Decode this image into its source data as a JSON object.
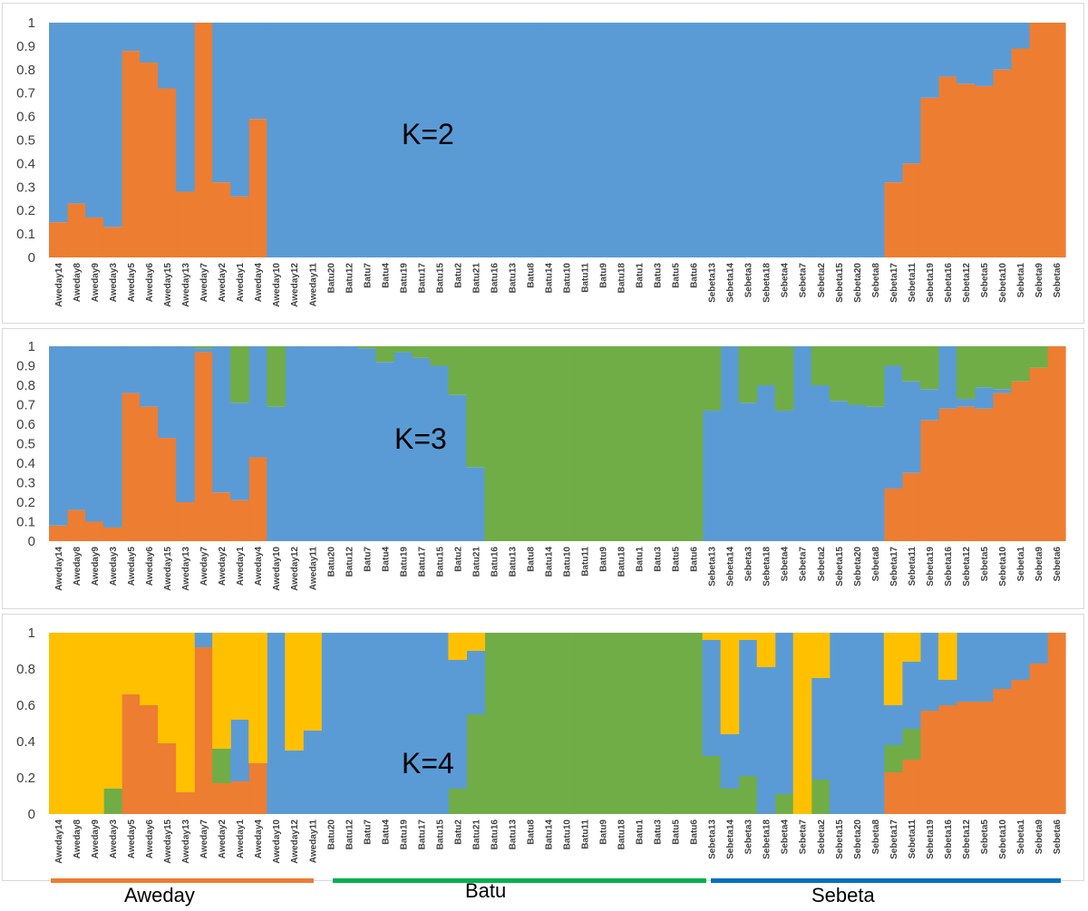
{
  "colors": {
    "blue": "#5b9bd5",
    "orange": "#ed7d31",
    "green": "#70ad47",
    "yellow": "#ffc000",
    "aweday_bar": "#ed7d31",
    "batu_bar": "#00b050",
    "sebeta_bar": "#0070c0"
  },
  "populations": [
    {
      "name": "Aweday",
      "color": "#ed7d31"
    },
    {
      "name": "Batu",
      "color": "#00b050"
    },
    {
      "name": "Sebeta",
      "color": "#0070c0"
    }
  ],
  "chart_data": [
    {
      "type": "bar",
      "stacked": true,
      "title": "K=2",
      "ylim": [
        0,
        1
      ],
      "yticks": [
        "0",
        "0.1",
        "0.2",
        "0.3",
        "0.4",
        "0.5",
        "0.6",
        "0.7",
        "0.8",
        "0.9",
        "1"
      ],
      "categories": [
        "Aweday14",
        "Aweday8",
        "Aweday9",
        "Aweday3",
        "Aweday5",
        "Aweday6",
        "Aweday15",
        "Aweday13",
        "Aweday7",
        "Aweday2",
        "Aweday1",
        "Aweday4",
        "Aweday10",
        "Aweday12",
        "Aweday11",
        "Batu20",
        "Batu12",
        "Batu7",
        "Batu4",
        "Batu19",
        "Batu17",
        "Batu15",
        "Batu2",
        "Batu21",
        "Batu16",
        "Batu13",
        "Batu8",
        "Batu14",
        "Batu10",
        "Batu11",
        "Batu9",
        "Batu18",
        "Batu1",
        "Batu3",
        "Batu5",
        "Batu6",
        "Sebeta13",
        "Sebeta14",
        "Sebeta3",
        "Sebeta18",
        "Sebeta4",
        "Sebeta7",
        "Sebeta2",
        "Sebeta15",
        "Sebeta20",
        "Sebeta8",
        "Sebeta17",
        "Sebeta11",
        "Sebeta19",
        "Sebeta16",
        "Sebeta12",
        "Sebeta5",
        "Sebeta10",
        "Sebeta1",
        "Sebeta9",
        "Sebeta6"
      ],
      "series": [
        {
          "color": "#ed7d31",
          "values": [
            0.15,
            0.23,
            0.17,
            0.13,
            0.88,
            0.83,
            0.72,
            0.28,
            1.0,
            0.32,
            0.26,
            0.59,
            0,
            0,
            0,
            0,
            0,
            0,
            0,
            0,
            0,
            0,
            0,
            0,
            0,
            0,
            0,
            0,
            0,
            0,
            0,
            0,
            0,
            0,
            0,
            0,
            0,
            0,
            0,
            0,
            0,
            0,
            0,
            0,
            0,
            0,
            0.32,
            0.4,
            0.68,
            0.77,
            0.74,
            0.73,
            0.8,
            0.89,
            1.0,
            1.0
          ]
        },
        {
          "color": "#5b9bd5",
          "values": [
            0.85,
            0.77,
            0.83,
            0.87,
            0.12,
            0.17,
            0.28,
            0.72,
            0,
            0.68,
            0.74,
            0.41,
            1,
            1,
            1,
            1,
            1,
            1,
            1,
            1,
            1,
            1,
            1,
            1,
            1,
            1,
            1,
            1,
            1,
            1,
            1,
            1,
            1,
            1,
            1,
            1,
            1,
            1,
            1,
            1,
            1,
            1,
            1,
            1,
            1,
            1,
            0.68,
            0.6,
            0.32,
            0.23,
            0.26,
            0.27,
            0.2,
            0.11,
            0,
            0
          ]
        }
      ]
    },
    {
      "type": "bar",
      "stacked": true,
      "title": "K=3",
      "ylim": [
        0,
        1
      ],
      "yticks": [
        "0",
        "0.1",
        "0.2",
        "0.3",
        "0.4",
        "0.5",
        "0.6",
        "0.7",
        "0.8",
        "0.9",
        "1"
      ],
      "categories": [
        "Aweday14",
        "Aweday8",
        "Aweday9",
        "Aweday3",
        "Aweday5",
        "Aweday6",
        "Aweday15",
        "Aweday13",
        "Aweday7",
        "Aweday2",
        "Aweday1",
        "Aweday4",
        "Aweday10",
        "Aweday12",
        "Aweday11",
        "Batu20",
        "Batu12",
        "Batu7",
        "Batu4",
        "Batu19",
        "Batu17",
        "Batu15",
        "Batu2",
        "Batu21",
        "Batu16",
        "Batu13",
        "Batu8",
        "Batu14",
        "Batu10",
        "Batu11",
        "Batu9",
        "Batu18",
        "Batu1",
        "Batu3",
        "Batu5",
        "Batu6",
        "Sebeta13",
        "Sebeta14",
        "Sebeta3",
        "Sebeta18",
        "Sebeta4",
        "Sebeta7",
        "Sebeta2",
        "Sebeta15",
        "Sebeta20",
        "Sebeta8",
        "Sebeta17",
        "Sebeta11",
        "Sebeta19",
        "Sebeta16",
        "Sebeta12",
        "Sebeta5",
        "Sebeta10",
        "Sebeta1",
        "Sebeta9",
        "Sebeta6"
      ],
      "series": [
        {
          "color": "#ed7d31",
          "values": [
            0.08,
            0.16,
            0.1,
            0.07,
            0.76,
            0.69,
            0.53,
            0.2,
            0.97,
            0.25,
            0.21,
            0.43,
            0,
            0,
            0,
            0,
            0,
            0,
            0,
            0,
            0,
            0,
            0,
            0,
            0,
            0,
            0,
            0,
            0,
            0,
            0,
            0,
            0,
            0,
            0,
            0,
            0,
            0,
            0,
            0,
            0,
            0,
            0,
            0,
            0,
            0,
            0.27,
            0.35,
            0.62,
            0.68,
            0.69,
            0.68,
            0.76,
            0.82,
            0.89,
            1.0
          ]
        },
        {
          "color": "#5b9bd5",
          "values": [
            0.92,
            0.84,
            0.9,
            0.93,
            0.24,
            0.31,
            0.47,
            0.8,
            0.02,
            0.75,
            0.5,
            0.57,
            0.69,
            1,
            1,
            1,
            1,
            0.99,
            0.92,
            0.97,
            0.94,
            0.9,
            0.75,
            0.38,
            0,
            0,
            0,
            0,
            0,
            0,
            0,
            0,
            0,
            0,
            0,
            0,
            0.67,
            1,
            0.71,
            0.8,
            0.67,
            1,
            0.8,
            0.72,
            0.7,
            0.69,
            0.63,
            0.47,
            0.16,
            0.32,
            0.04,
            0.11,
            0.02,
            0,
            0,
            0
          ]
        },
        {
          "color": "#70ad47",
          "values": [
            0,
            0,
            0,
            0,
            0,
            0,
            0,
            0,
            0.01,
            0,
            0.29,
            0,
            0.31,
            0,
            0,
            0,
            0,
            0.01,
            0.08,
            0.03,
            0.06,
            0.1,
            0.25,
            0.62,
            1,
            1,
            1,
            1,
            1,
            1,
            1,
            1,
            1,
            1,
            1,
            1,
            0.33,
            0,
            0.29,
            0.2,
            0.33,
            0,
            0.2,
            0.28,
            0.3,
            0.31,
            0.1,
            0.18,
            0.22,
            0,
            0.27,
            0.21,
            0.22,
            0.18,
            0.11,
            0
          ]
        }
      ]
    },
    {
      "type": "bar",
      "stacked": true,
      "title": "K=4",
      "ylim": [
        0,
        1
      ],
      "yticks": [
        "0",
        "0.2",
        "0.4",
        "0.6",
        "0.8",
        "1"
      ],
      "categories": [
        "Aweday14",
        "Aweday8",
        "Aweday9",
        "Aweday3",
        "Aweday5",
        "Aweday6",
        "Aweday15",
        "Aweday13",
        "Aweday7",
        "Aweday2",
        "Aweday1",
        "Aweday4",
        "Aweday10",
        "Aweday12",
        "Aweday11",
        "Batu20",
        "Batu12",
        "Batu7",
        "Batu4",
        "Batu19",
        "Batu17",
        "Batu15",
        "Batu2",
        "Batu21",
        "Batu16",
        "Batu13",
        "Batu8",
        "Batu14",
        "Batu10",
        "Batu11",
        "Batu9",
        "Batu18",
        "Batu1",
        "Batu3",
        "Batu5",
        "Batu6",
        "Sebeta13",
        "Sebeta14",
        "Sebeta3",
        "Sebeta18",
        "Sebeta4",
        "Sebeta7",
        "Sebeta2",
        "Sebeta15",
        "Sebeta20",
        "Sebeta8",
        "Sebeta17",
        "Sebeta11",
        "Sebeta19",
        "Sebeta16",
        "Sebeta12",
        "Sebeta5",
        "Sebeta10",
        "Sebeta1",
        "Sebeta9",
        "Sebeta6"
      ],
      "series": [
        {
          "color": "#ed7d31",
          "values": [
            0,
            0,
            0,
            0,
            0.66,
            0.6,
            0.39,
            0.12,
            0.92,
            0.17,
            0.18,
            0.28,
            0,
            0,
            0,
            0,
            0,
            0,
            0,
            0,
            0,
            0,
            0,
            0,
            0,
            0,
            0,
            0,
            0,
            0,
            0,
            0,
            0,
            0,
            0,
            0,
            0,
            0,
            0,
            0,
            0,
            0,
            0,
            0,
            0,
            0,
            0.23,
            0.3,
            0.57,
            0.6,
            0.62,
            0.62,
            0.69,
            0.74,
            0.83,
            1.0
          ]
        },
        {
          "color": "#70ad47",
          "values": [
            0,
            0,
            0,
            0.14,
            0,
            0,
            0,
            0,
            0,
            0.19,
            0,
            0,
            0,
            0,
            0,
            0,
            0,
            0,
            0,
            0,
            0,
            0,
            0.14,
            0.55,
            1,
            1,
            1,
            1,
            1,
            1,
            1,
            1,
            1,
            1,
            1,
            1,
            0.32,
            0.14,
            0.21,
            0,
            0.11,
            0,
            0.19,
            0,
            0,
            0,
            0.15,
            0.17,
            0,
            0,
            0,
            0,
            0,
            0,
            0,
            0
          ]
        },
        {
          "color": "#5b9bd5",
          "values": [
            0,
            0,
            0,
            0,
            0,
            0,
            0,
            0,
            0.08,
            0,
            0.34,
            0,
            1.0,
            0.35,
            0.46,
            1,
            1,
            1,
            1,
            1,
            1,
            1,
            0.71,
            0.35,
            0,
            0,
            0,
            0,
            0,
            0,
            0,
            0,
            0,
            0,
            0,
            0,
            0.64,
            0.3,
            0.75,
            0.81,
            0.89,
            0,
            0.56,
            1.0,
            1.0,
            1.0,
            0.22,
            0.37,
            0.43,
            0.14,
            0.38,
            0.38,
            0.31,
            0.26,
            0.17,
            0
          ]
        },
        {
          "color": "#ffc000",
          "values": [
            1,
            1,
            1,
            0.86,
            0.34,
            0.4,
            0.61,
            0.88,
            0,
            0.64,
            0.48,
            0.72,
            0,
            0.65,
            0.54,
            0,
            0,
            0,
            0,
            0,
            0,
            0,
            0.15,
            0.1,
            0,
            0,
            0,
            0,
            0,
            0,
            0,
            0,
            0,
            0,
            0,
            0,
            0.04,
            0.56,
            0.04,
            0.19,
            0,
            1.0,
            0.25,
            0,
            0,
            0,
            0.4,
            0.16,
            0,
            0.26,
            0,
            0,
            0,
            0,
            0,
            0
          ]
        }
      ]
    }
  ]
}
